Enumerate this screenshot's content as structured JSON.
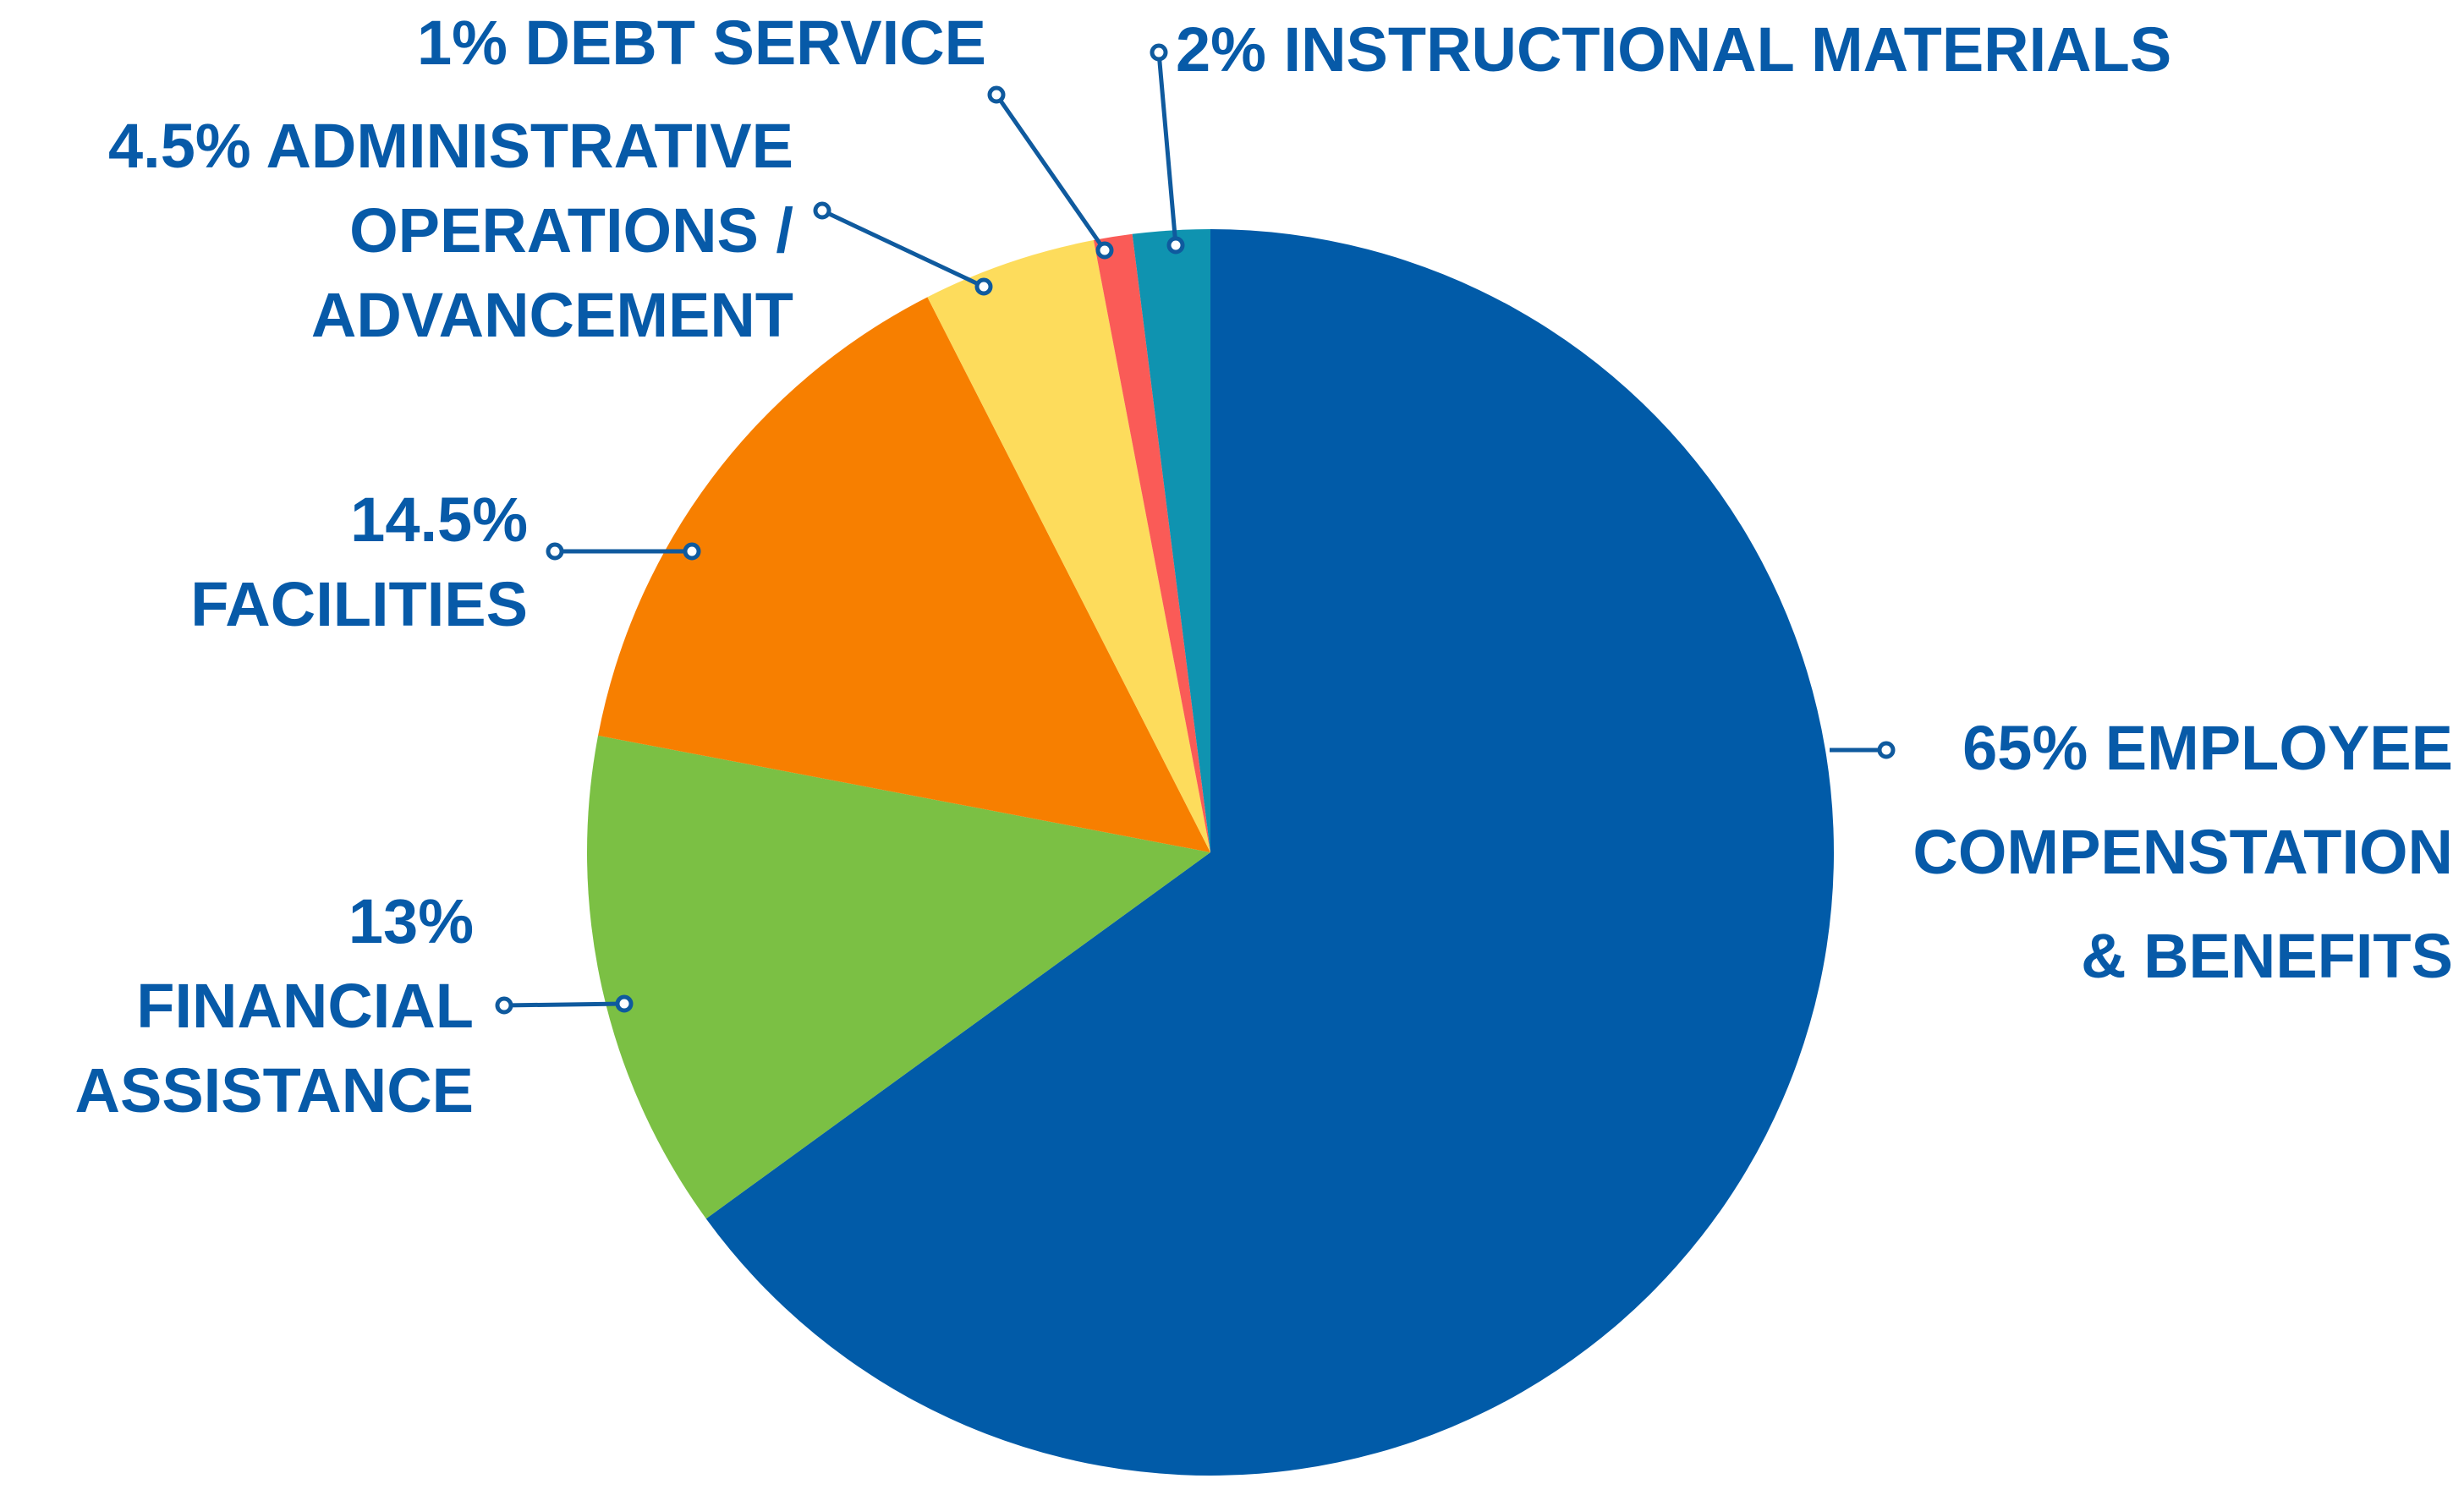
{
  "chart_data": {
    "type": "pie",
    "title": "",
    "start_angle_deg": 0,
    "direction": "clockwise",
    "slices": [
      {
        "label_lines": [
          "65% EMPLOYEE",
          "COMPENSTATION",
          "& BENEFITS"
        ],
        "value": 65,
        "color": "#015ba8"
      },
      {
        "label_lines": [
          "13%",
          "FINANCIAL",
          "ASSISTANCE"
        ],
        "value": 13,
        "color": "#7bc044"
      },
      {
        "label_lines": [
          "14.5%",
          "FACILITIES"
        ],
        "value": 14.5,
        "color": "#f77f00"
      },
      {
        "label_lines": [
          "4.5% ADMINISTRATIVE",
          "OPERATIONS /",
          "ADVANCEMENT"
        ],
        "value": 4.5,
        "color": "#fddc5c"
      },
      {
        "label_lines": [
          "1% DEBT SERVICE"
        ],
        "value": 1,
        "color": "#fa5b57"
      },
      {
        "label_lines": [
          "2% INSTRUCTIONAL MATERIALS"
        ],
        "value": 2,
        "color": "#0f93b0"
      }
    ]
  }
}
